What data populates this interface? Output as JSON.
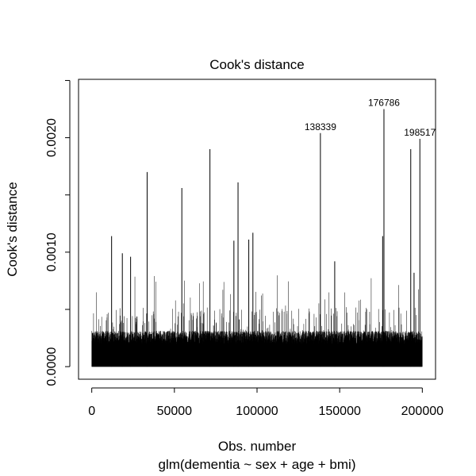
{
  "chart_data": {
    "type": "bar",
    "title": "Cook's distance",
    "xlabel": "Obs. number",
    "subtitle": "glm(dementia ~ sex + age + bmi)",
    "ylabel": "Cook's distance",
    "xlim": [
      -8000,
      208000
    ],
    "ylim": [
      -0.00011,
      0.00251
    ],
    "x_ticks": [
      0,
      50000,
      100000,
      150000,
      200000
    ],
    "x_tick_labels": [
      "0",
      "50000",
      "100000",
      "150000",
      "200000"
    ],
    "y_ticks": [
      0,
      0.0005,
      0.001,
      0.0015,
      0.002,
      0.0025
    ],
    "y_tick_labels": [
      "0.0000",
      "",
      "0.0010",
      "",
      "0.0020",
      ""
    ],
    "n_observations": 200000,
    "baseline_level": 0.00025,
    "highlighted": [
      {
        "x": 138339,
        "y": 0.00204,
        "label": "138339"
      },
      {
        "x": 176786,
        "y": 0.00225,
        "label": "176786"
      },
      {
        "x": 198517,
        "y": 0.00199,
        "label": "198517"
      }
    ],
    "peaks": [
      {
        "x": 12000,
        "y": 0.00114
      },
      {
        "x": 18500,
        "y": 0.00099
      },
      {
        "x": 23500,
        "y": 0.00096
      },
      {
        "x": 33500,
        "y": 0.0017
      },
      {
        "x": 54500,
        "y": 0.00156
      },
      {
        "x": 71500,
        "y": 0.0019
      },
      {
        "x": 86000,
        "y": 0.0011
      },
      {
        "x": 88500,
        "y": 0.00161
      },
      {
        "x": 95000,
        "y": 0.00111
      },
      {
        "x": 97500,
        "y": 0.00117
      },
      {
        "x": 147000,
        "y": 0.00092
      },
      {
        "x": 176000,
        "y": 0.00114
      },
      {
        "x": 193000,
        "y": 0.0019
      },
      {
        "x": 195000,
        "y": 0.00082
      }
    ],
    "grid": false,
    "legend": "none"
  },
  "colors": {
    "background": "#ffffff",
    "ink": "#000000"
  }
}
